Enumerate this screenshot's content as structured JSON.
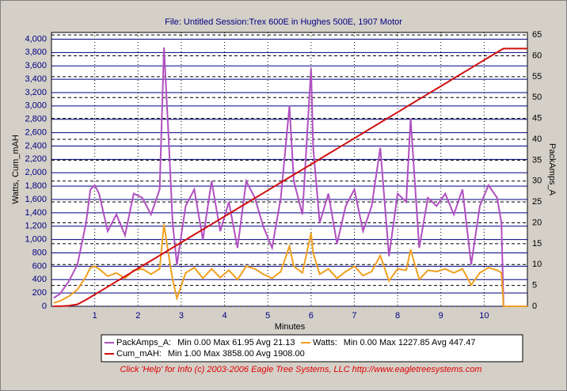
{
  "chart_data": {
    "type": "line",
    "title": "File: Untitled   Session:Trex 600E in Hughes 500E, 1907 Motor",
    "xlabel": "Minutes",
    "ylabel": "Watts, Cum_mAH",
    "y2label": "PackAmps_A",
    "footer": "Click 'Help' for Info  (c) 2003-2006 Eagle Tree Systems, LLC      http://www.eagletreesystems.com",
    "xlim": [
      0,
      11
    ],
    "xticks": [
      1,
      2,
      3,
      4,
      5,
      6,
      7,
      8,
      9,
      10
    ],
    "ylim": [
      0,
      4100
    ],
    "yticks": [
      0,
      200,
      400,
      600,
      800,
      {
        "value": 1000,
        "label": "1,000"
      },
      {
        "value": 1200,
        "label": "1,200"
      },
      {
        "value": 1400,
        "label": "1,400"
      },
      {
        "value": 1600,
        "label": "1,600"
      },
      {
        "value": 1800,
        "label": "1,800"
      },
      {
        "value": 2000,
        "label": "2,000"
      },
      {
        "value": 2200,
        "label": "2,200"
      },
      {
        "value": 2400,
        "label": "2,400"
      },
      {
        "value": 2600,
        "label": "2,600"
      },
      {
        "value": 2800,
        "label": "2,800"
      },
      {
        "value": 3000,
        "label": "3,000"
      },
      {
        "value": 3200,
        "label": "3,200"
      },
      {
        "value": 3400,
        "label": "3,400"
      },
      {
        "value": 3600,
        "label": "3,600"
      },
      {
        "value": 3800,
        "label": "3,800"
      },
      {
        "value": 4000,
        "label": "4,000"
      }
    ],
    "y2lim": [
      0,
      65.6
    ],
    "y2ticks": [
      0,
      5,
      10,
      15,
      20,
      25,
      30,
      35,
      40,
      45,
      50,
      55,
      60,
      65
    ],
    "grid": true,
    "x": [
      0.05,
      0.2,
      0.4,
      0.6,
      0.8,
      0.9,
      1.0,
      1.1,
      1.3,
      1.5,
      1.7,
      1.9,
      2.1,
      2.3,
      2.5,
      2.6,
      2.7,
      2.8,
      2.9,
      3.1,
      3.3,
      3.5,
      3.7,
      3.9,
      4.1,
      4.3,
      4.5,
      4.7,
      4.9,
      5.1,
      5.3,
      5.5,
      5.6,
      5.8,
      6.0,
      6.05,
      6.2,
      6.4,
      6.6,
      6.8,
      7.0,
      7.2,
      7.4,
      7.6,
      7.8,
      8.0,
      8.2,
      8.3,
      8.5,
      8.7,
      8.9,
      9.1,
      9.3,
      9.5,
      9.7,
      9.9,
      10.1,
      10.3,
      10.4,
      10.45,
      10.5,
      11.0
    ],
    "series": [
      {
        "name": "PackAmps_A:",
        "stats": "Min 0.00 Max 61.95 Avg 21.13",
        "color": "#b050c0",
        "axis": "y2",
        "values": [
          2,
          3,
          6,
          10,
          20,
          28,
          29,
          27,
          18,
          22,
          17,
          27,
          26,
          22,
          28,
          62,
          42,
          20,
          10,
          24,
          28,
          16,
          30,
          18,
          25,
          14,
          30,
          26,
          19,
          14,
          26,
          48,
          30,
          22,
          57,
          38,
          20,
          27,
          15,
          24,
          28,
          18,
          24,
          38,
          12,
          27,
          25,
          45,
          14,
          26,
          24,
          27,
          22,
          28,
          10,
          24,
          29,
          26,
          20,
          0,
          0,
          0
        ]
      },
      {
        "name": "Watts:",
        "stats": "Min 0.00 Max 1227.85 Avg 447.47",
        "color": "#f0a020",
        "values": [
          50,
          80,
          150,
          250,
          450,
          580,
          600,
          560,
          450,
          500,
          420,
          540,
          560,
          480,
          560,
          1228,
          800,
          400,
          120,
          500,
          580,
          420,
          560,
          430,
          540,
          400,
          600,
          560,
          480,
          420,
          520,
          900,
          600,
          500,
          1100,
          800,
          480,
          560,
          420,
          520,
          600,
          460,
          520,
          760,
          380,
          560,
          540,
          850,
          400,
          540,
          520,
          560,
          500,
          560,
          320,
          500,
          580,
          540,
          500,
          0,
          0,
          0
        ]
      },
      {
        "name": "Cum_mAH:",
        "stats": "Min 1.00 Max 3858.00 Avg 1908.00",
        "color": "#d01010",
        "values": [
          1,
          1,
          10,
          30,
          98,
          137,
          176,
          215,
          293,
          371,
          449,
          527,
          605,
          683,
          761,
          800,
          839,
          878,
          917,
          995,
          1073,
          1151,
          1229,
          1307,
          1385,
          1463,
          1541,
          1619,
          1697,
          1775,
          1853,
          1931,
          1970,
          2048,
          2126,
          2145,
          2204,
          2282,
          2360,
          2438,
          2516,
          2594,
          2672,
          2750,
          2828,
          2906,
          2984,
          3023,
          3101,
          3179,
          3257,
          3335,
          3413,
          3491,
          3569,
          3647,
          3725,
          3803,
          3842,
          3858,
          3858,
          3858
        ]
      }
    ]
  }
}
